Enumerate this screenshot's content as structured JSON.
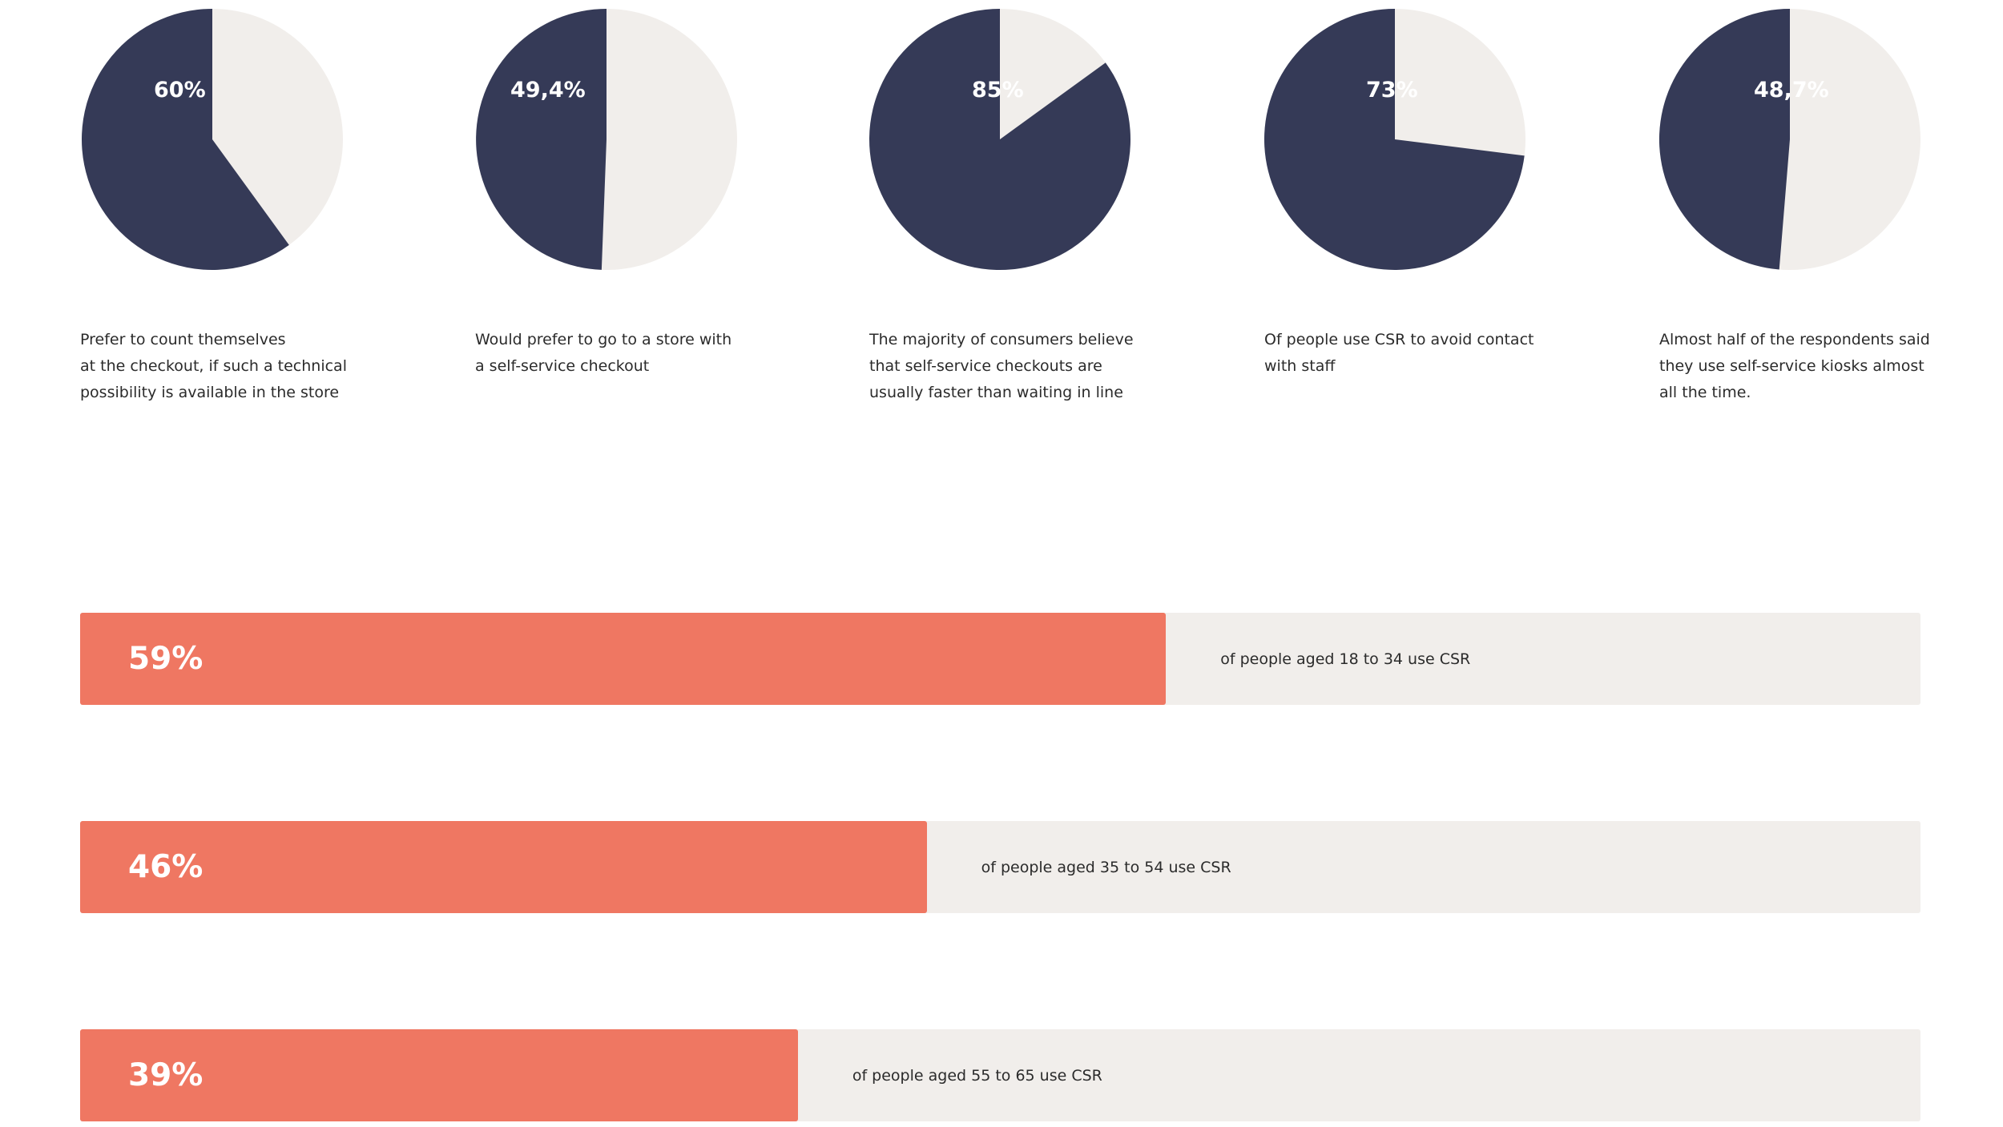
{
  "colors": {
    "pie_fill": "#353a57",
    "pie_rest": "#f1eeeb",
    "bar_fill": "#ef7762",
    "bar_track": "#f1eeeb",
    "caption_text": "#2b2b2b"
  },
  "chart_data": [
    {
      "type": "pie",
      "slices": [
        {
          "label": "60%",
          "value": 60,
          "caption_lines": [
            "Prefer to count themselves",
            "at the checkout, if such a technical",
            "possibility is available in the store"
          ]
        },
        {
          "label": "49,4%",
          "value": 49.4,
          "caption_lines": [
            "Would prefer to go to a store with",
            "a self-service checkout"
          ]
        },
        {
          "label": "85%",
          "value": 85,
          "caption_lines": [
            "The majority of consumers  believe",
            "that self-service checkouts are",
            "usually faster than waiting in line"
          ]
        },
        {
          "label": "73%",
          "value": 73,
          "caption_lines": [
            "Of people use CSR to avoid contact",
            "with staff"
          ]
        },
        {
          "label": "48,7%",
          "value": 48.7,
          "caption_lines": [
            "Almost half of the respondents said",
            "they use self-service kiosks almost",
            "all the time."
          ]
        }
      ]
    },
    {
      "type": "bar",
      "orientation": "horizontal",
      "xlim": [
        0,
        100
      ],
      "bars": [
        {
          "label": "59%",
          "value": 59,
          "text": "of people aged 18 to 34 use CSR"
        },
        {
          "label": "46%",
          "value": 46,
          "text": "of people aged 35 to 54 use CSR"
        },
        {
          "label": "39%",
          "value": 39,
          "text": "of people aged 55 to 65 use CSR"
        }
      ]
    }
  ]
}
